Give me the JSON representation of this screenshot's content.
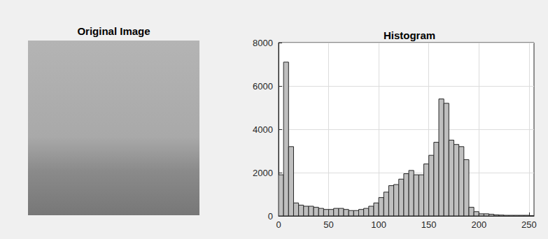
{
  "image": {
    "title": "Original Image"
  },
  "chart_data": {
    "type": "histogram",
    "title": "Histogram",
    "bins": [
      0,
      5,
      10,
      15,
      20,
      25,
      30,
      35,
      40,
      45,
      50,
      55,
      60,
      65,
      70,
      75,
      80,
      85,
      90,
      95,
      100,
      105,
      110,
      115,
      120,
      125,
      130,
      135,
      140,
      145,
      150,
      155,
      160,
      165,
      170,
      175,
      180,
      185,
      190,
      195,
      200,
      205,
      210,
      215,
      220,
      225,
      230,
      235,
      240,
      245,
      250,
      255
    ],
    "values": [
      1900,
      7100,
      3200,
      600,
      500,
      450,
      450,
      400,
      350,
      300,
      300,
      350,
      350,
      300,
      250,
      250,
      300,
      350,
      450,
      600,
      850,
      1100,
      1400,
      1450,
      1700,
      1950,
      2100,
      1900,
      1900,
      2400,
      2800,
      3400,
      5400,
      5200,
      3500,
      3300,
      3200,
      2600,
      400,
      200,
      100,
      100,
      80,
      50,
      40,
      30,
      30,
      30,
      30,
      30,
      10
    ],
    "color": "#bfbfbf",
    "xlim": [
      0,
      255
    ],
    "xticks": [
      0,
      50,
      100,
      150,
      200,
      250
    ],
    "ylim": [
      0,
      8000
    ],
    "yticks": [
      0,
      2000,
      4000,
      6000,
      8000
    ],
    "grid": true
  }
}
